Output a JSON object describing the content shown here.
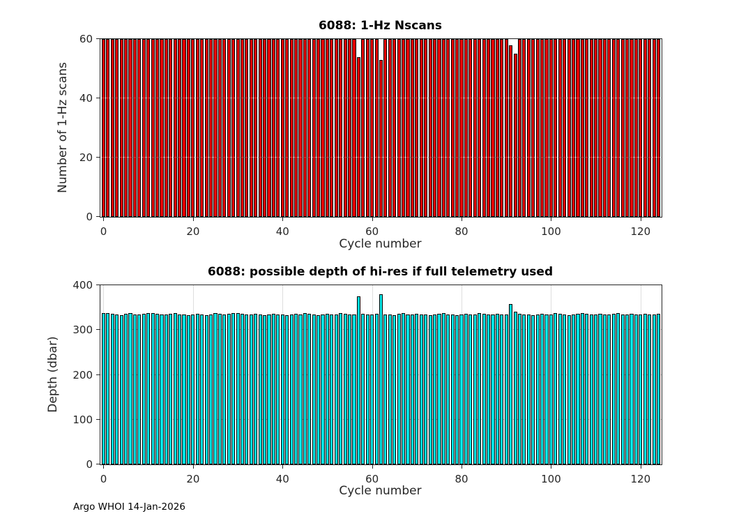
{
  "figure": {
    "footer": "Argo WHOI 14-Jan-2026"
  },
  "chart_data": [
    {
      "type": "bar",
      "title": "6088: 1-Hz Nscans",
      "xlabel": "Cycle number",
      "ylabel": "Number of 1-Hz scans",
      "xlim": [
        -0.7,
        124.7
      ],
      "ylim": [
        0,
        60
      ],
      "xticks": [
        0,
        20,
        40,
        60,
        80,
        100,
        120
      ],
      "yticks": [
        0,
        20,
        40,
        60
      ],
      "grid": true,
      "grid_over_bars": true,
      "legend": "none",
      "bar_color": "#e60000",
      "bar_edge": "#000000",
      "x_start": 0,
      "values": [
        60,
        60,
        60,
        60,
        60,
        60,
        60,
        60,
        60,
        60,
        60,
        60,
        60,
        60,
        60,
        60,
        60,
        60,
        60,
        60,
        60,
        60,
        60,
        60,
        60,
        60,
        60,
        60,
        60,
        60,
        60,
        60,
        60,
        60,
        60,
        60,
        60,
        60,
        60,
        60,
        60,
        60,
        60,
        60,
        60,
        60,
        60,
        60,
        60,
        60,
        60,
        60,
        60,
        60,
        60,
        60,
        60,
        54,
        60,
        60,
        60,
        60,
        53,
        60,
        60,
        60,
        60,
        60,
        60,
        60,
        60,
        60,
        60,
        60,
        60,
        60,
        60,
        60,
        60,
        60,
        60,
        60,
        60,
        60,
        60,
        60,
        60,
        60,
        60,
        60,
        60,
        58,
        55,
        60,
        60,
        60,
        60,
        60,
        60,
        60,
        60,
        60,
        60,
        60,
        60,
        60,
        60,
        60,
        60,
        60,
        60,
        60,
        60,
        60,
        60,
        60,
        60,
        60,
        60,
        60,
        60,
        60,
        60,
        60,
        60
      ]
    },
    {
      "type": "bar",
      "title": "6088: possible depth of hi-res if full telemetry used",
      "xlabel": "Cycle number",
      "ylabel": "Depth (dbar)",
      "xlim": [
        -0.7,
        124.7
      ],
      "ylim": [
        0,
        400
      ],
      "xticks": [
        0,
        20,
        40,
        60,
        80,
        100,
        120
      ],
      "yticks": [
        0,
        100,
        200,
        300,
        400
      ],
      "grid": true,
      "grid_over_bars": false,
      "legend": "none",
      "bar_color": "#00e5e6",
      "bar_edge": "#000000",
      "x_start": 0,
      "values": [
        338,
        337,
        336,
        334,
        333,
        336,
        337,
        335,
        334,
        336,
        337,
        338,
        336,
        335,
        334,
        336,
        337,
        335,
        334,
        333,
        335,
        336,
        334,
        333,
        335,
        337,
        336,
        334,
        336,
        338,
        337,
        336,
        335,
        334,
        336,
        335,
        333,
        334,
        336,
        335,
        334,
        333,
        335,
        336,
        334,
        338,
        336,
        334,
        333,
        335,
        336,
        334,
        335,
        337,
        336,
        335,
        334,
        375,
        336,
        335,
        334,
        336,
        380,
        335,
        334,
        333,
        336,
        337,
        335,
        334,
        336,
        335,
        334,
        333,
        335,
        336,
        337,
        335,
        334,
        333,
        335,
        336,
        334,
        335,
        337,
        336,
        335,
        334,
        336,
        335,
        334,
        358,
        341,
        336,
        335,
        334,
        333,
        335,
        336,
        334,
        335,
        337,
        336,
        334,
        333,
        335,
        336,
        338,
        336,
        335,
        334,
        336,
        335,
        334,
        336,
        337,
        335,
        334,
        336,
        335,
        334,
        336,
        335,
        334,
        336
      ]
    }
  ]
}
